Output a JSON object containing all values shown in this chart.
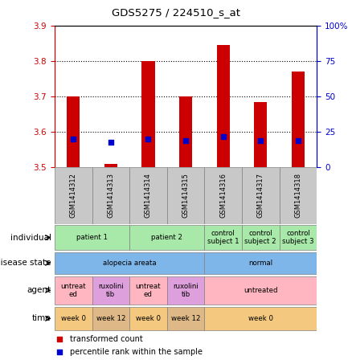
{
  "title": "GDS5275 / 224510_s_at",
  "samples": [
    "GSM1414312",
    "GSM1414313",
    "GSM1414314",
    "GSM1414315",
    "GSM1414316",
    "GSM1414317",
    "GSM1414318"
  ],
  "red_values": [
    3.7,
    3.51,
    3.8,
    3.7,
    3.845,
    3.685,
    3.77
  ],
  "blue_percentile": [
    20,
    18,
    20,
    19,
    22,
    19,
    19
  ],
  "ylim_left": [
    3.5,
    3.9
  ],
  "ylim_right": [
    0,
    100
  ],
  "yticks_left": [
    3.5,
    3.6,
    3.7,
    3.8,
    3.9
  ],
  "yticks_right": [
    0,
    25,
    50,
    75,
    100
  ],
  "ytick_labels_right": [
    "0",
    "25",
    "50",
    "75",
    "100%"
  ],
  "row_labels": [
    "individual",
    "disease state",
    "agent",
    "time"
  ],
  "individual_groups": [
    {
      "label": "patient 1",
      "start": 0,
      "end": 2,
      "color": "#A8E8A8"
    },
    {
      "label": "patient 2",
      "start": 2,
      "end": 4,
      "color": "#A8E8A8"
    },
    {
      "label": "control\nsubject 1",
      "start": 4,
      "end": 5,
      "color": "#A8E8A8"
    },
    {
      "label": "control\nsubject 2",
      "start": 5,
      "end": 6,
      "color": "#A8E8A8"
    },
    {
      "label": "control\nsubject 3",
      "start": 6,
      "end": 7,
      "color": "#A8E8A8"
    }
  ],
  "disease_groups": [
    {
      "label": "alopecia areata",
      "start": 0,
      "end": 4,
      "color": "#7EB6EA"
    },
    {
      "label": "normal",
      "start": 4,
      "end": 7,
      "color": "#7EB6EA"
    }
  ],
  "agent_groups": [
    {
      "label": "untreat\ned",
      "start": 0,
      "end": 1,
      "color": "#FFB6C1"
    },
    {
      "label": "ruxolini\ntib",
      "start": 1,
      "end": 2,
      "color": "#DDA0DD"
    },
    {
      "label": "untreat\ned",
      "start": 2,
      "end": 3,
      "color": "#FFB6C1"
    },
    {
      "label": "ruxolini\ntib",
      "start": 3,
      "end": 4,
      "color": "#DDA0DD"
    },
    {
      "label": "untreated",
      "start": 4,
      "end": 7,
      "color": "#FFB6C1"
    }
  ],
  "time_groups": [
    {
      "label": "week 0",
      "start": 0,
      "end": 1,
      "color": "#F5C880"
    },
    {
      "label": "week 12",
      "start": 1,
      "end": 2,
      "color": "#DEB887"
    },
    {
      "label": "week 0",
      "start": 2,
      "end": 3,
      "color": "#F5C880"
    },
    {
      "label": "week 12",
      "start": 3,
      "end": 4,
      "color": "#DEB887"
    },
    {
      "label": "week 0",
      "start": 4,
      "end": 7,
      "color": "#F5C880"
    }
  ],
  "bar_color": "#CC0000",
  "dot_color": "#0000CC",
  "label_color_left": "#CC0000",
  "label_color_right": "#0000CC",
  "sample_bg_color": "#C8C8C8",
  "legend_items": [
    {
      "color": "#CC0000",
      "label": "transformed count"
    },
    {
      "color": "#0000CC",
      "label": "percentile rank within the sample"
    }
  ]
}
